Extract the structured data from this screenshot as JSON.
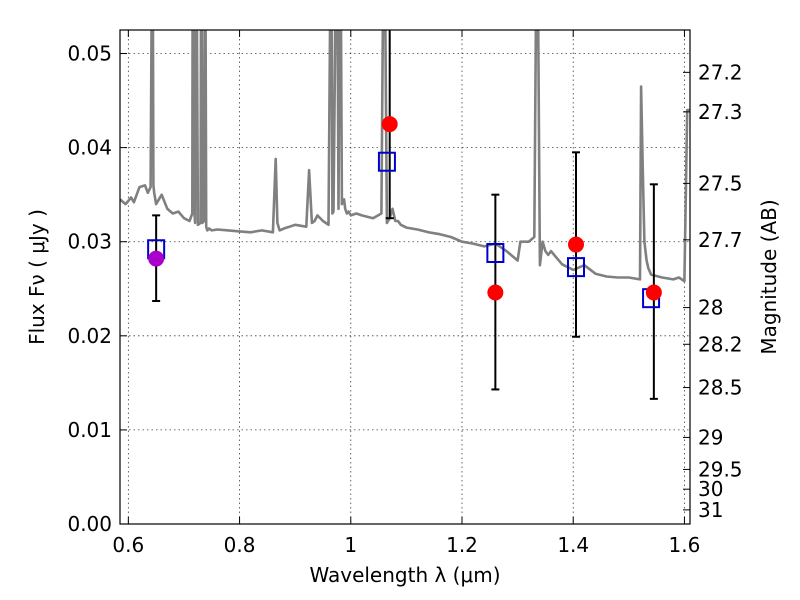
{
  "chart_data": {
    "type": "scatter",
    "xlabel": "Wavelength  λ (μm)",
    "ylabel": "Flux  Fν  ( μJy )",
    "ylabel_right": "Magnitude (AB)",
    "xlim": [
      0.585,
      1.61
    ],
    "ylim": [
      0.0,
      0.0525
    ],
    "grid": true,
    "x_ticks": [
      0.6,
      0.8,
      1.0,
      1.2,
      1.4,
      1.6
    ],
    "x_tick_labels": [
      "0.6",
      "0.8",
      "1",
      "1.2",
      "1.4",
      "1.6"
    ],
    "y_ticks": [
      0.0,
      0.01,
      0.02,
      0.03,
      0.04,
      0.05
    ],
    "y_tick_labels": [
      "0.00",
      "0.01",
      "0.02",
      "0.03",
      "0.04",
      "0.05"
    ],
    "right_axis_ticks": [
      {
        "flux": 0.048,
        "label": "27.2"
      },
      {
        "flux": 0.0438,
        "label": "27.3"
      },
      {
        "flux": 0.0362,
        "label": "27.5"
      },
      {
        "flux": 0.0302,
        "label": "27.7"
      },
      {
        "flux": 0.023,
        "label": "28"
      },
      {
        "flux": 0.0191,
        "label": "28.2"
      },
      {
        "flux": 0.0145,
        "label": "28.5"
      },
      {
        "flux": 0.0092,
        "label": "29"
      },
      {
        "flux": 0.0058,
        "label": "29.5"
      },
      {
        "flux": 0.0037,
        "label": "30"
      },
      {
        "flux": 0.0015,
        "label": "31"
      }
    ],
    "colors": {
      "model": "#808080",
      "observed": "#ff0000",
      "synthetic": "#0000cc",
      "errorbar": "#000000",
      "special_point": "#aa00cc"
    },
    "model_spectrum": {
      "x": [
        0.585,
        0.595,
        0.605,
        0.61,
        0.62,
        0.63,
        0.635,
        0.64,
        0.6435,
        0.645,
        0.6465,
        0.65,
        0.66,
        0.67,
        0.68,
        0.69,
        0.7,
        0.71,
        0.715,
        0.716,
        0.718,
        0.72,
        0.722,
        0.725,
        0.73,
        0.731,
        0.733,
        0.736,
        0.738,
        0.74,
        0.742,
        0.745,
        0.75,
        0.76,
        0.78,
        0.8,
        0.82,
        0.84,
        0.86,
        0.865,
        0.868,
        0.872,
        0.88,
        0.9,
        0.92,
        0.925,
        0.93,
        0.935,
        0.94,
        0.95,
        0.96,
        0.965,
        0.967,
        0.969,
        0.975,
        0.978,
        0.981,
        0.984,
        0.988,
        0.99,
        0.993,
        0.996,
        1.0,
        1.01,
        1.02,
        1.04,
        1.055,
        1.06,
        1.065,
        1.07,
        1.075,
        1.08,
        1.085,
        1.09,
        1.1,
        1.12,
        1.14,
        1.16,
        1.18,
        1.2,
        1.22,
        1.24,
        1.26,
        1.28,
        1.3,
        1.305,
        1.32,
        1.33,
        1.335,
        1.34,
        1.345,
        1.35,
        1.355,
        1.36,
        1.37,
        1.38,
        1.4,
        1.42,
        1.44,
        1.46,
        1.48,
        1.5,
        1.52,
        1.522,
        1.525,
        1.528,
        1.532,
        1.535,
        1.54,
        1.56,
        1.58,
        1.59,
        1.6,
        1.605,
        1.61
      ],
      "y": [
        0.0345,
        0.034,
        0.0347,
        0.0342,
        0.0358,
        0.036,
        0.0352,
        0.0358,
        0.07,
        0.036,
        0.0352,
        0.034,
        0.035,
        0.0335,
        0.033,
        0.0332,
        0.0325,
        0.0322,
        0.033,
        0.07,
        0.034,
        0.032,
        0.07,
        0.0318,
        0.032,
        0.07,
        0.032,
        0.0322,
        0.07,
        0.0316,
        0.0312,
        0.0314,
        0.0312,
        0.0313,
        0.0312,
        0.0311,
        0.031,
        0.0312,
        0.031,
        0.0388,
        0.032,
        0.0312,
        0.0314,
        0.0318,
        0.0316,
        0.0376,
        0.032,
        0.0322,
        0.0328,
        0.0322,
        0.0318,
        0.07,
        0.033,
        0.0332,
        0.07,
        0.0335,
        0.07,
        0.034,
        0.0345,
        0.0335,
        0.033,
        0.0332,
        0.0328,
        0.033,
        0.0328,
        0.0325,
        0.033,
        0.07,
        0.032,
        0.0325,
        0.0335,
        0.0322,
        0.0322,
        0.0318,
        0.0315,
        0.0313,
        0.031,
        0.0308,
        0.0305,
        0.03,
        0.0298,
        0.0295,
        0.0298,
        0.029,
        0.028,
        0.03,
        0.03,
        0.0305,
        0.07,
        0.0275,
        0.03,
        0.029,
        0.0286,
        0.029,
        0.0283,
        0.0276,
        0.027,
        0.0275,
        0.0266,
        0.0263,
        0.0262,
        0.0262,
        0.026,
        0.0465,
        0.038,
        0.03,
        0.028,
        0.0272,
        0.0265,
        0.0262,
        0.026,
        0.0262,
        0.0258,
        0.044,
        0.044
      ]
    },
    "synthetic_photometry": {
      "x": [
        0.65,
        1.065,
        1.26,
        1.405,
        1.54
      ],
      "y": [
        0.0292,
        0.0385,
        0.0288,
        0.0273,
        0.024
      ]
    },
    "observed_photometry": {
      "x": [
        0.65,
        1.07,
        1.26,
        1.405,
        1.545
      ],
      "y": [
        0.0282,
        0.0425,
        0.0246,
        0.0297,
        0.0246
      ],
      "yerr_low": [
        0.0237,
        0.0325,
        0.0143,
        0.0199,
        0.0133
      ],
      "yerr_high": [
        0.0328,
        0.0525,
        0.035,
        0.0395,
        0.0361
      ],
      "is_special": [
        true,
        false,
        false,
        false,
        false
      ]
    }
  }
}
